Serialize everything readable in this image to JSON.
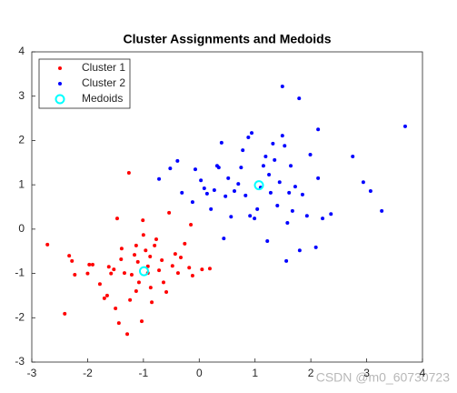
{
  "chart_data": {
    "type": "scatter",
    "title": "Cluster Assignments and Medoids",
    "xlim": [
      -3,
      4
    ],
    "ylim": [
      -3,
      4
    ],
    "xticks": [
      -3,
      -2,
      -1,
      0,
      1,
      2,
      3,
      4
    ],
    "yticks": [
      -3,
      -2,
      -1,
      0,
      1,
      2,
      3,
      4
    ],
    "legend": "upper-left",
    "watermark": "CSDN @m0_60730723",
    "series": [
      {
        "name": "Cluster 1",
        "color": "#ff0000",
        "marker": "dot",
        "x": [
          -2.72,
          -2.33,
          -2.28,
          -2.23,
          -2.41,
          -1.97,
          -1.91,
          -2.0,
          -1.78,
          -1.7,
          -1.65,
          -1.58,
          -1.53,
          -1.47,
          -1.26,
          -1.5,
          -1.44,
          -1.39,
          -1.4,
          -1.34,
          -1.29,
          -1.16,
          -1.13,
          -1.13,
          -1.1,
          -1.08,
          -1.01,
          -1.0,
          -1.03,
          -0.96,
          -0.92,
          -0.88,
          -0.87,
          -0.85,
          -0.8,
          -0.77,
          -0.72,
          -0.67,
          -0.64,
          -0.59,
          -0.54,
          -0.48,
          -0.43,
          -0.38,
          -0.33,
          -0.26,
          -0.18,
          -0.15,
          -0.12,
          0.05,
          0.19,
          -1.24,
          -1.62,
          -1.21,
          -0.92
        ],
        "y": [
          -0.35,
          -0.6,
          -0.72,
          -1.03,
          -1.91,
          -0.8,
          -0.8,
          -1.0,
          -1.24,
          -1.56,
          -1.5,
          -1.0,
          -0.91,
          0.24,
          1.27,
          -1.79,
          -2.12,
          -0.44,
          -0.68,
          -0.99,
          -2.37,
          -0.58,
          -0.37,
          -1.4,
          -0.74,
          -1.2,
          0.2,
          -0.13,
          -2.08,
          -0.48,
          -0.99,
          -0.62,
          -1.32,
          -1.65,
          -0.37,
          -0.23,
          -0.93,
          -0.7,
          -1.2,
          -1.42,
          0.37,
          -0.83,
          -0.56,
          -0.99,
          -0.64,
          -0.33,
          -0.87,
          0.1,
          -1.05,
          -0.91,
          -0.89,
          -1.6,
          -0.85,
          -1.03,
          -0.84
        ]
      },
      {
        "name": "Cluster 2",
        "color": "#0000ff",
        "marker": "dot",
        "x": [
          -0.72,
          -0.52,
          -0.39,
          -0.31,
          -0.12,
          -0.07,
          0.03,
          0.09,
          0.14,
          0.21,
          0.27,
          0.32,
          0.35,
          0.4,
          0.44,
          0.47,
          0.52,
          0.57,
          0.63,
          0.7,
          0.75,
          0.78,
          0.83,
          0.88,
          0.91,
          0.94,
          0.99,
          1.04,
          1.1,
          1.15,
          1.19,
          1.22,
          1.25,
          1.28,
          1.32,
          1.35,
          1.4,
          1.44,
          1.49,
          1.49,
          1.53,
          1.58,
          1.61,
          1.64,
          1.67,
          1.72,
          1.79,
          1.8,
          1.85,
          1.93,
          1.99,
          2.09,
          2.13,
          2.13,
          2.21,
          2.36,
          2.75,
          2.94,
          3.07,
          3.27,
          3.69,
          1.56
        ],
        "y": [
          1.13,
          1.37,
          1.54,
          0.82,
          0.61,
          1.35,
          1.1,
          0.92,
          0.8,
          0.45,
          0.88,
          1.43,
          1.39,
          1.95,
          -0.21,
          0.74,
          1.15,
          0.28,
          0.86,
          1.02,
          1.39,
          1.78,
          0.76,
          2.07,
          0.3,
          2.17,
          0.24,
          0.45,
          0.94,
          1.43,
          1.64,
          -0.27,
          1.23,
          0.82,
          1.93,
          1.56,
          0.53,
          1.06,
          2.11,
          3.22,
          1.88,
          0.14,
          0.82,
          1.43,
          0.41,
          0.96,
          2.95,
          -0.48,
          0.78,
          0.3,
          1.68,
          -0.41,
          1.15,
          2.25,
          0.24,
          0.34,
          1.64,
          1.06,
          0.86,
          0.41,
          2.32,
          -0.72
        ]
      },
      {
        "name": "Medoids",
        "color": "#00ffff",
        "marker": "circle",
        "x": [
          -0.99,
          1.07
        ],
        "y": [
          -0.95,
          0.99
        ]
      }
    ]
  }
}
